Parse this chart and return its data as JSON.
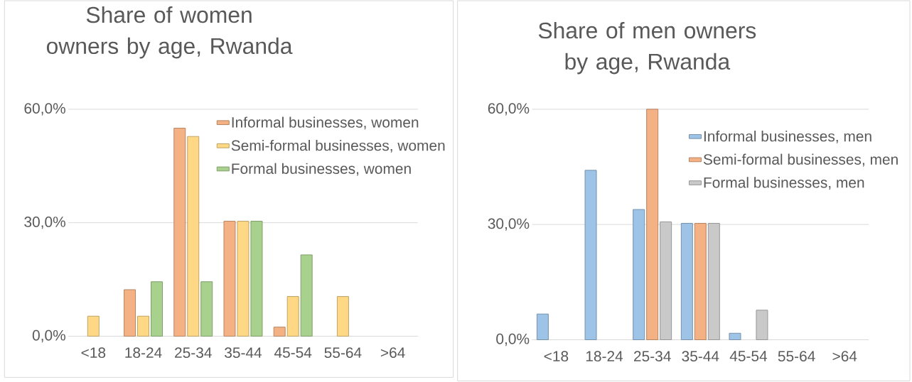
{
  "chart_data": [
    {
      "type": "bar",
      "title": "Share of women owners by age, Rwanda",
      "categories": [
        "<18",
        "18-24",
        "25-34",
        "35-44",
        "45-54",
        "55-64",
        ">64"
      ],
      "series": [
        {
          "name": "Informal businesses, women",
          "color": "#f4b183",
          "values": [
            null,
            12.3,
            55.0,
            30.4,
            2.4,
            null,
            null
          ]
        },
        {
          "name": "Semi-formal businesses, women",
          "color": "#ffd885",
          "values": [
            5.3,
            5.3,
            52.8,
            30.4,
            10.5,
            10.5,
            null
          ]
        },
        {
          "name": "Formal businesses, women",
          "color": "#a9d18e",
          "values": [
            null,
            14.4,
            14.4,
            30.4,
            21.5,
            null,
            null
          ]
        }
      ],
      "ylim": [
        0,
        60
      ],
      "yticks": [
        {
          "value": 0,
          "label": "0,0%"
        },
        {
          "value": 30,
          "label": "30,0%"
        },
        {
          "value": 60,
          "label": "60,0%"
        }
      ],
      "grid": "y",
      "legend": "top right"
    },
    {
      "type": "bar",
      "title": "Share of men owners by age, Rwanda",
      "categories": [
        "<18",
        "18-24",
        "25-34",
        "35-44",
        "45-54",
        "55-64",
        ">64"
      ],
      "series": [
        {
          "name": "Informal businesses, men",
          "color": "#9dc3e6",
          "values": [
            6.7,
            44.1,
            33.9,
            30.3,
            1.7,
            null,
            null
          ]
        },
        {
          "name": "Semi-formal businesses, men",
          "color": "#f4b183",
          "values": [
            null,
            null,
            60,
            30.3,
            null,
            null,
            null
          ]
        },
        {
          "name": "Formal businesses, men",
          "color": "#c9c9c9",
          "values": [
            null,
            null,
            30.7,
            30.3,
            7.7,
            null,
            null
          ]
        }
      ],
      "ylim": [
        0,
        60
      ],
      "yticks": [
        {
          "value": 0,
          "label": "0,0%"
        },
        {
          "value": 30,
          "label": "30,0%"
        },
        {
          "value": 60,
          "label": "60,0%"
        }
      ],
      "grid": "y",
      "legend": "top right"
    }
  ]
}
